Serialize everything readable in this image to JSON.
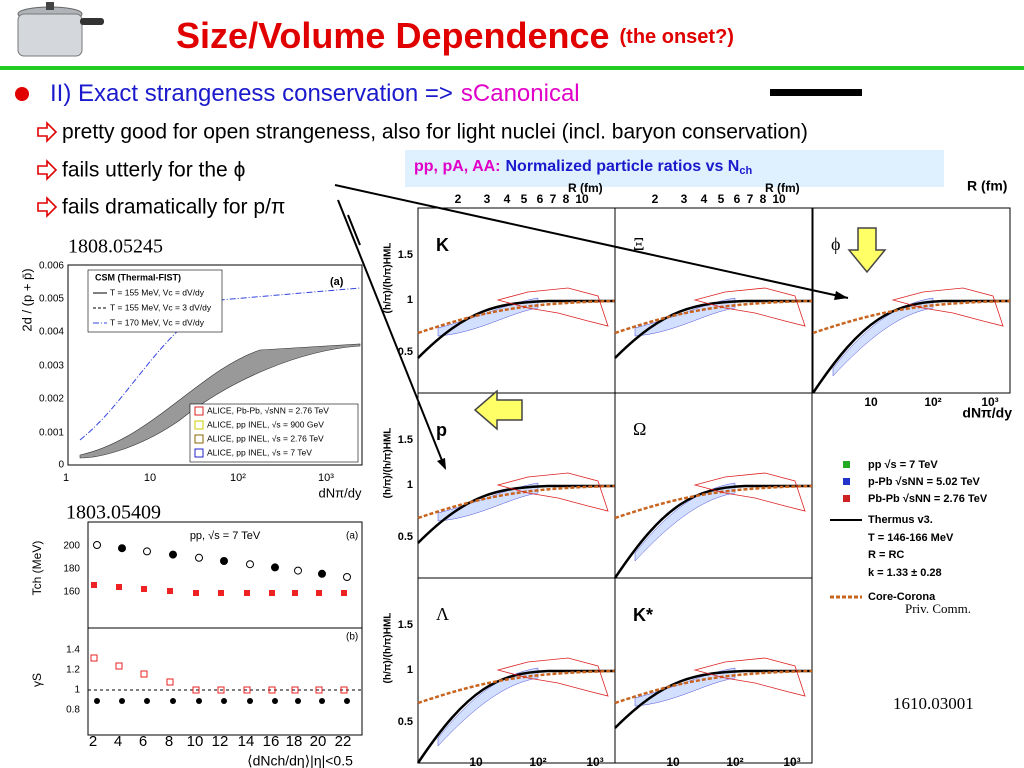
{
  "header": {
    "title": "Size/Volume Dependence",
    "subtitle": "(the onset?)"
  },
  "bullet": {
    "text": "II) Exact strangeness conservation =>",
    "highlight": "sCanonical"
  },
  "items": [
    "pretty good for open strangeness, also for light nuclei (incl. baryon conservation)",
    "fails utterly for the ϕ",
    "fails dramatically for p/π"
  ],
  "callout": {
    "prefix": "pp, pA, AA:",
    "text": "Normalized particle ratios vs N",
    "sub": "ch"
  },
  "references": [
    "1808.05245",
    "1803.05409",
    "1610.03001"
  ],
  "note": "Priv. Comm.",
  "csm_plot": {
    "y_label": "2d / (p + p̄)",
    "yticks": [
      "0",
      "0.001",
      "0.002",
      "0.003",
      "0.004",
      "0.005",
      "0.006"
    ],
    "xticks": [
      "1",
      "10",
      "10²",
      "10³"
    ],
    "x_label": "dNπ/dy",
    "panel": "(a)",
    "legend_title": "CSM (Thermal-FIST)",
    "models": [
      "T = 155 MeV, Vc = dV/dy",
      "T = 155 MeV, Vc = 3 dV/dy",
      "T = 170 MeV, Vc = dV/dy"
    ],
    "data_legend": [
      "ALICE, Pb-Pb, √sNN = 2.76 TeV",
      "ALICE, pp INEL, √s = 900 GeV",
      "ALICE, pp INEL, √s = 2.76 TeV",
      "ALICE, pp INEL, √s = 7 TeV"
    ]
  },
  "freezeout_plot": {
    "system": "pp, √s = 7 TeV",
    "panels": [
      "(a)",
      "(b)"
    ],
    "y_labels": [
      "Tch (MeV)",
      "γS"
    ],
    "yticks_top": [
      "160",
      "180",
      "200"
    ],
    "yticks_bottom": [
      "0.8",
      "1",
      "1.2",
      "1.4"
    ],
    "xticks": [
      "2",
      "4",
      "6",
      "8",
      "10",
      "12",
      "14",
      "16",
      "18",
      "20",
      "22"
    ],
    "x_label": "⟨dNch/dη⟩|η|<0.5"
  },
  "ratio_plot": {
    "panels": [
      "K",
      "Ξ",
      "ϕ",
      "p",
      "Ω",
      "Λ",
      "K*"
    ],
    "y_label": "(h/π)/(h/π)HML",
    "yticks": [
      "0.5",
      "1",
      "1.5"
    ],
    "xticks": [
      "10",
      "10²",
      "10³"
    ],
    "x_label": "dNπ/dy",
    "top_label": "R (fm)",
    "top_ticks": [
      "2",
      "3",
      "4",
      "5",
      "6",
      "7",
      "8",
      "10"
    ],
    "legend": [
      "pp √s = 7 TeV",
      "p-Pb √sNN = 5.02 TeV",
      "Pb-Pb √sNN = 2.76 TeV",
      "Thermus v3.",
      "T = 146-166 MeV",
      "R = RC",
      "k = 1.33 ± 0.28",
      "Core-Corona"
    ]
  }
}
